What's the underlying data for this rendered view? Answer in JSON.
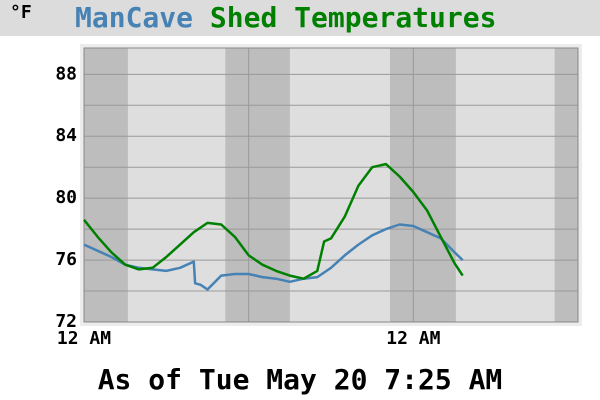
{
  "chart_data": {
    "type": "line",
    "title": "Temperatures",
    "y_label": "°F",
    "footer": "As of Tue May 20 7:25 AM",
    "xlim": [
      0,
      36
    ],
    "xticks": [
      {
        "value": 0,
        "label": "12 AM"
      },
      {
        "value": 24,
        "label": "12 AM"
      }
    ],
    "minor_xticks": [
      12
    ],
    "ylim": [
      72,
      89.7
    ],
    "yticks": [
      72,
      76,
      80,
      84,
      88
    ],
    "minor_yticks": [
      74,
      78,
      82,
      86
    ],
    "grid": true,
    "shaded_bands": [
      [
        0,
        3.2
      ],
      [
        10.3,
        15
      ],
      [
        22.3,
        27.1
      ],
      [
        34.3,
        36
      ]
    ],
    "band_color": "#bdbdbd",
    "background": "#dedede",
    "series": [
      {
        "name": "ManCave",
        "color": "#4682b4",
        "x": [
          0,
          1,
          2,
          3,
          4,
          5,
          6,
          7,
          8,
          8.1,
          8.5,
          9,
          10,
          11,
          12,
          13,
          14,
          15,
          16,
          17,
          18,
          19,
          20,
          21,
          22,
          23,
          24,
          25,
          26,
          27,
          27.6
        ],
        "values": [
          77.0,
          76.6,
          76.2,
          75.7,
          75.5,
          75.4,
          75.3,
          75.5,
          75.9,
          74.5,
          74.4,
          74.1,
          75.0,
          75.1,
          75.1,
          74.9,
          74.8,
          74.6,
          74.8,
          74.9,
          75.5,
          76.3,
          77.0,
          77.6,
          78.0,
          78.3,
          78.2,
          77.8,
          77.4,
          76.5,
          76.0
        ]
      },
      {
        "name": "Shed",
        "color": "#008000",
        "x": [
          0,
          1,
          2,
          3,
          4,
          5,
          6,
          7,
          8,
          9,
          10,
          11,
          12,
          13,
          14,
          15,
          16,
          17,
          17.5,
          18,
          19,
          20,
          21,
          22,
          23,
          24,
          25,
          26,
          27,
          27.6
        ],
        "values": [
          78.6,
          77.5,
          76.5,
          75.7,
          75.4,
          75.5,
          76.2,
          77.0,
          77.8,
          78.4,
          78.3,
          77.5,
          76.3,
          75.7,
          75.3,
          75.0,
          74.8,
          75.3,
          77.2,
          77.4,
          78.8,
          80.8,
          82.0,
          82.2,
          81.4,
          80.4,
          79.2,
          77.5,
          75.8,
          75.0
        ]
      }
    ]
  }
}
